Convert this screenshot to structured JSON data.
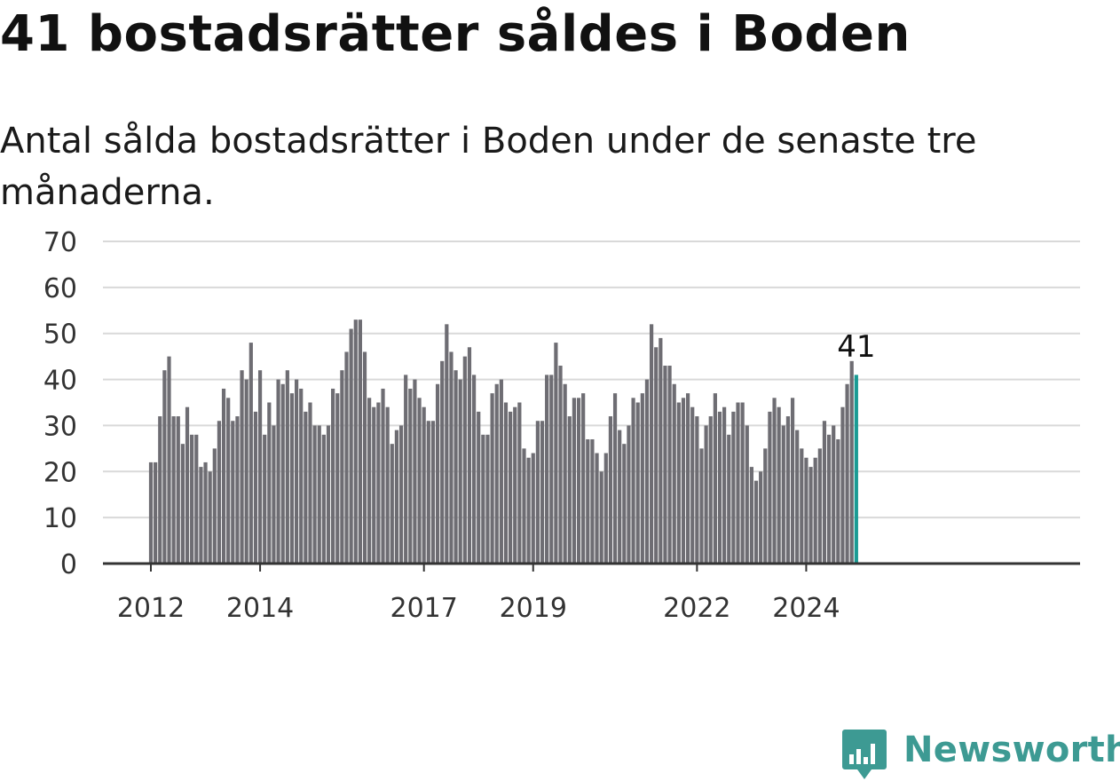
{
  "header": {
    "title": "41 bostadsrätter såldes i Boden",
    "subtitle": "Antal sålda bostadsrätter i Boden under de senaste tre månaderna."
  },
  "brand": {
    "name": "Newsworthy",
    "color": "#3d9a93",
    "icon": "bar-chart-speech-icon"
  },
  "colors": {
    "bar": "#6e6d73",
    "highlight": "#1a9b94",
    "grid": "#d9d9d9",
    "axis": "#333333"
  },
  "chart_data": {
    "type": "bar",
    "title": "41 bostadsrätter såldes i Boden",
    "subtitle": "Antal sålda bostadsrätter i Boden under de senaste tre månaderna.",
    "xlabel": "",
    "ylabel": "",
    "ylim": [
      0,
      70
    ],
    "yticks": [
      0,
      10,
      20,
      30,
      40,
      50,
      60,
      70
    ],
    "grid": true,
    "start": "2012-01",
    "frequency": "monthly",
    "xticks": [
      {
        "label": "2012",
        "date": "2012-01"
      },
      {
        "label": "2014",
        "date": "2014-01"
      },
      {
        "label": "2017",
        "date": "2017-01"
      },
      {
        "label": "2019",
        "date": "2019-01"
      },
      {
        "label": "2022",
        "date": "2022-01"
      },
      {
        "label": "2024",
        "date": "2024-01"
      }
    ],
    "values": [
      22,
      22,
      32,
      42,
      45,
      32,
      32,
      26,
      34,
      28,
      28,
      21,
      22,
      20,
      25,
      31,
      38,
      36,
      31,
      32,
      42,
      40,
      48,
      33,
      42,
      28,
      35,
      30,
      40,
      39,
      42,
      37,
      40,
      38,
      33,
      35,
      30,
      30,
      28,
      30,
      38,
      37,
      42,
      46,
      51,
      53,
      53,
      46,
      36,
      34,
      35,
      38,
      34,
      26,
      29,
      30,
      41,
      38,
      40,
      36,
      34,
      31,
      31,
      39,
      44,
      52,
      46,
      42,
      40,
      45,
      47,
      41,
      33,
      28,
      28,
      37,
      39,
      40,
      35,
      33,
      34,
      35,
      25,
      23,
      24,
      31,
      31,
      41,
      41,
      48,
      43,
      39,
      32,
      36,
      36,
      37,
      27,
      27,
      24,
      20,
      24,
      32,
      37,
      29,
      26,
      30,
      36,
      35,
      37,
      40,
      52,
      47,
      49,
      43,
      43,
      39,
      35,
      36,
      37,
      34,
      32,
      25,
      30,
      32,
      37,
      33,
      34,
      28,
      33,
      35,
      35,
      30,
      21,
      18,
      20,
      25,
      33,
      36,
      34,
      30,
      32,
      36,
      29,
      25,
      23,
      21,
      23,
      25,
      31,
      28,
      30,
      27,
      34,
      39,
      44,
      41
    ],
    "highlight": {
      "index": 155,
      "value": 41,
      "label": "41"
    }
  }
}
